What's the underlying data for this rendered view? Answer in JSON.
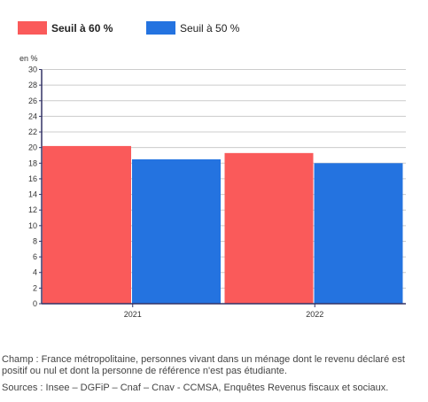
{
  "chart_data": {
    "type": "bar",
    "categories": [
      "2021",
      "2022"
    ],
    "series": [
      {
        "name": "Seuil à 60 %",
        "values": [
          20.2,
          19.3
        ],
        "color": "#fa5a5a"
      },
      {
        "name": "Seuil à 50 %",
        "values": [
          18.5,
          18.0
        ],
        "color": "#2473e0"
      }
    ],
    "ylabel": "en %",
    "ylim": [
      0,
      30
    ],
    "yticks": [
      0,
      2,
      4,
      6,
      8,
      10,
      12,
      14,
      16,
      18,
      20,
      22,
      24,
      26,
      28,
      30
    ],
    "grid": true,
    "legend": "top-left"
  },
  "notes": {
    "champ": "Champ : France métropolitaine, personnes vivant dans un ménage dont le revenu déclaré est positif ou nul et dont la personne de référence n'est pas étudiante.",
    "sources": "Sources : Insee – DGFiP – Cnaf – Cnav - CCMSA, Enquêtes Revenus fiscaux et sociaux."
  }
}
